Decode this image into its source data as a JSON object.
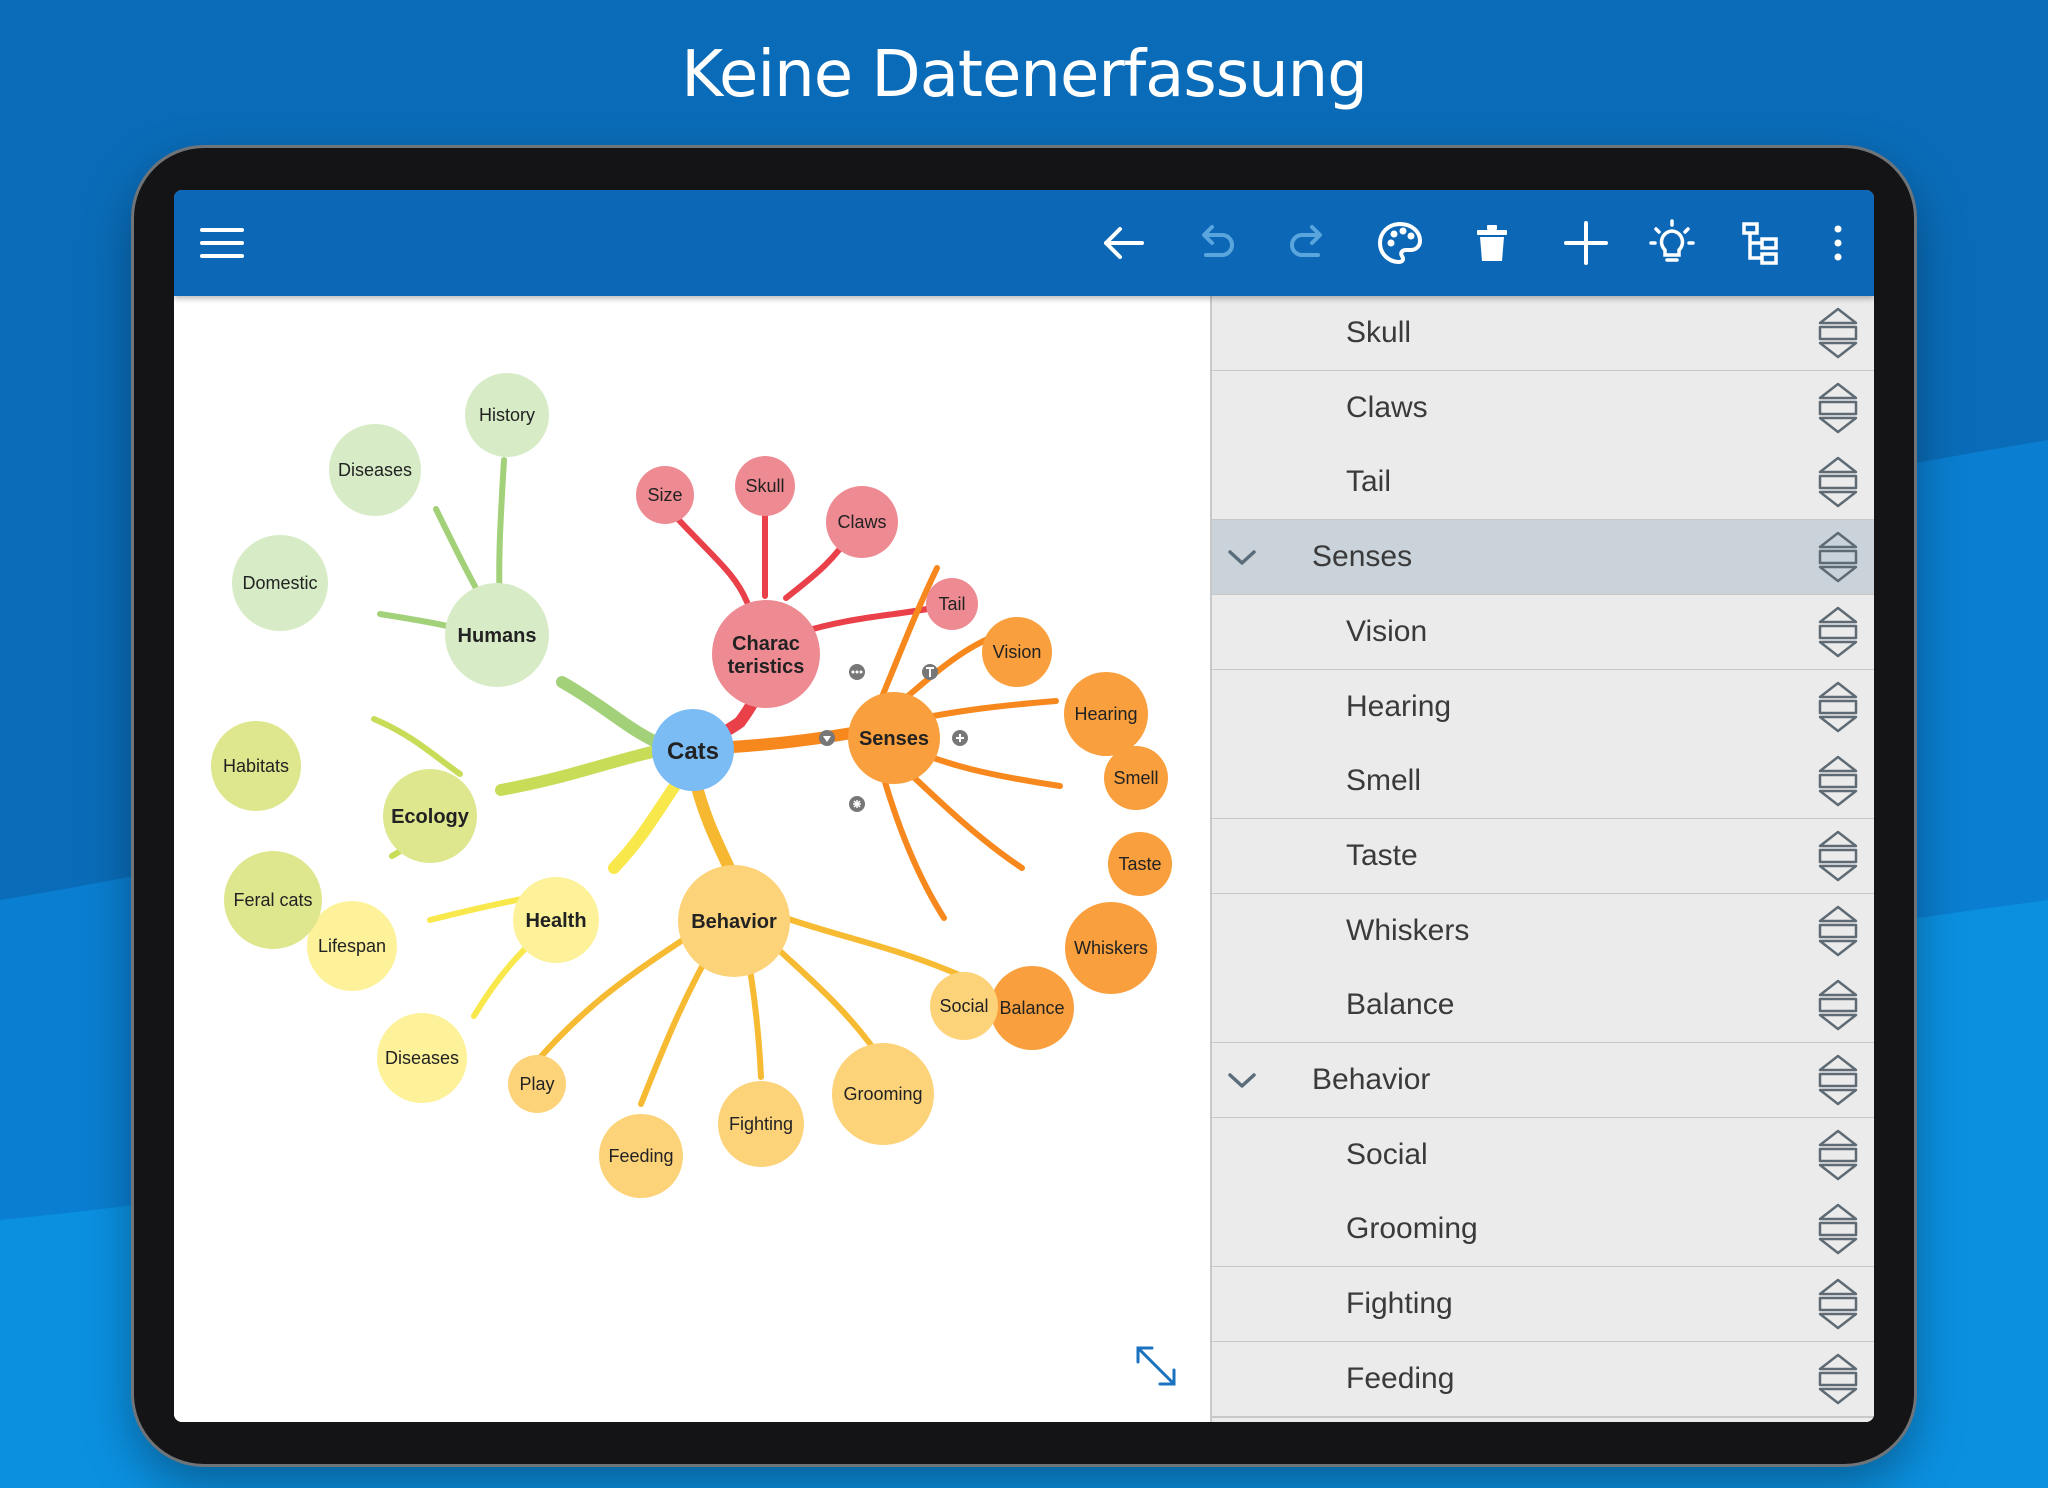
{
  "headline": "Keine Datenerfassung",
  "toolbar": {
    "menu": "menu-icon",
    "back": "arrow-left-icon",
    "undo": "undo-icon",
    "redo": "redo-icon",
    "style": "palette-icon",
    "delete": "trash-icon",
    "add": "plus-icon",
    "ideas": "lightbulb-icon",
    "structure": "tree-icon",
    "more": "more-vertical-icon",
    "color": "#0c68b6"
  },
  "mindmap": {
    "center": "Cats",
    "branches": {
      "characteristics": {
        "label_line1": "Charac",
        "label_line2": "teristics",
        "children": [
          "Size",
          "Skull",
          "Claws",
          "Tail"
        ],
        "color": "#e9545b"
      },
      "senses": {
        "label": "Senses",
        "children": [
          "Vision",
          "Hearing",
          "Smell",
          "Taste",
          "Whiskers",
          "Balance"
        ],
        "color": "#f7941d"
      },
      "behavior": {
        "label": "Behavior",
        "children": [
          "Social",
          "Grooming",
          "Fighting",
          "Feeding",
          "Play"
        ],
        "color": "#f9bd3c"
      },
      "health": {
        "label": "Health",
        "children": [
          "Lifespan",
          "Diseases"
        ],
        "color": "#f7e64a"
      },
      "ecology": {
        "label": "Ecology",
        "children": [
          "Habitats",
          "Feral cats"
        ],
        "color": "#c5d95a"
      },
      "humans": {
        "label": "Humans",
        "children": [
          "History",
          "Diseases",
          "Domestic"
        ],
        "color": "#9ccf72"
      }
    },
    "resize_icon": "expand-diagonal-icon"
  },
  "outline": {
    "rows": [
      {
        "label": "Skull",
        "level": 2,
        "expanded": false,
        "selected": false
      },
      {
        "label": "Claws",
        "level": 2,
        "expanded": false,
        "selected": false
      },
      {
        "label": "Tail",
        "level": 2,
        "expanded": false,
        "selected": false
      },
      {
        "label": "Senses",
        "level": 1,
        "expanded": true,
        "selected": true
      },
      {
        "label": "Vision",
        "level": 2,
        "expanded": false,
        "selected": false
      },
      {
        "label": "Hearing",
        "level": 2,
        "expanded": false,
        "selected": false
      },
      {
        "label": "Smell",
        "level": 2,
        "expanded": false,
        "selected": false
      },
      {
        "label": "Taste",
        "level": 2,
        "expanded": false,
        "selected": false
      },
      {
        "label": "Whiskers",
        "level": 2,
        "expanded": false,
        "selected": false
      },
      {
        "label": "Balance",
        "level": 2,
        "expanded": false,
        "selected": false
      },
      {
        "label": "Behavior",
        "level": 1,
        "expanded": true,
        "selected": false
      },
      {
        "label": "Social",
        "level": 2,
        "expanded": false,
        "selected": false
      },
      {
        "label": "Grooming",
        "level": 2,
        "expanded": false,
        "selected": false
      },
      {
        "label": "Fighting",
        "level": 2,
        "expanded": false,
        "selected": false
      },
      {
        "label": "Feeding",
        "level": 2,
        "expanded": false,
        "selected": false
      }
    ],
    "handle_icon": "reorder-handle-icon",
    "chevron_icon": "chevron-down-icon"
  }
}
